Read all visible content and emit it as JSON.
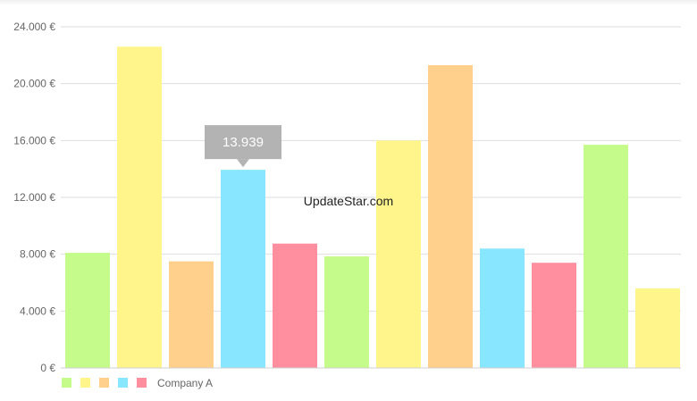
{
  "chart_data": {
    "type": "bar",
    "ylim": [
      0,
      24000
    ],
    "yticks": [
      {
        "value": 0,
        "label": "0 €"
      },
      {
        "value": 4000,
        "label": "4.000 €"
      },
      {
        "value": 8000,
        "label": "8.000 €"
      },
      {
        "value": 12000,
        "label": "12.000 €"
      },
      {
        "value": 16000,
        "label": "16.000 €"
      },
      {
        "value": 20000,
        "label": "20.000 €"
      },
      {
        "value": 24000,
        "label": "24.000 €"
      }
    ],
    "grid": true,
    "values": [
      8100,
      22600,
      7500,
      13939,
      8750,
      7850,
      16000,
      21300,
      8400,
      7400,
      15700,
      5600
    ],
    "bar_colors": [
      "#c5fb8a",
      "#fff58a",
      "#ffcf8c",
      "#88e6fe",
      "#ff8f9f",
      "#c5fb8a",
      "#fff58a",
      "#ffcf8c",
      "#88e6fe",
      "#ff8f9f",
      "#c5fb8a",
      "#fff58a"
    ],
    "tooltip": {
      "bar_index": 3,
      "text": "13.939"
    },
    "legend": {
      "placement": "bottom-left",
      "swatch_colors": [
        "#c5fb8a",
        "#fff58a",
        "#ffcf8c",
        "#88e6fe",
        "#ff8f9f"
      ],
      "label": "Company A"
    }
  },
  "watermark": "UpdateStar.com",
  "colors": {
    "tooltip_bg": "#b3b3b3",
    "grid": "#dedede"
  }
}
